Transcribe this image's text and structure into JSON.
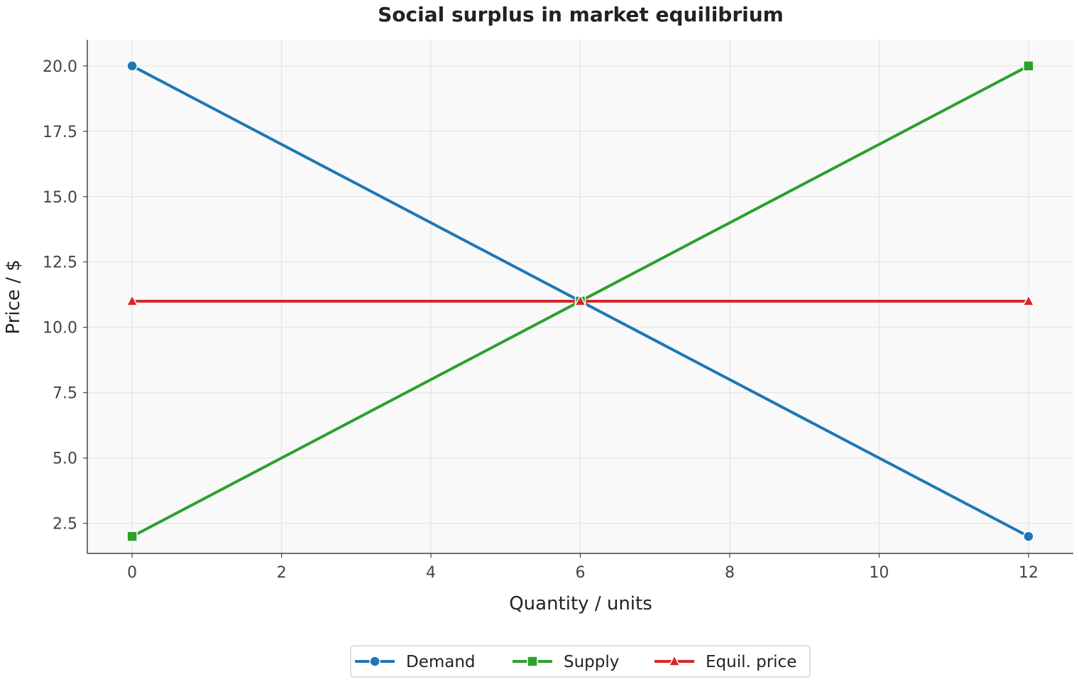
{
  "chart_data": {
    "type": "line",
    "title": "Social surplus in market equilibrium",
    "xlabel": "Quantity / units",
    "ylabel": "Price / $",
    "xlim": [
      -0.6,
      12.6
    ],
    "ylim": [
      1.35,
      21.0
    ],
    "xticks": [
      0,
      2,
      4,
      6,
      8,
      10,
      12
    ],
    "yticks": [
      2.5,
      5.0,
      7.5,
      10.0,
      12.5,
      15.0,
      17.5,
      20.0
    ],
    "xtick_labels": [
      "0",
      "2",
      "4",
      "6",
      "8",
      "10",
      "12"
    ],
    "ytick_labels": [
      "2.5",
      "5.0",
      "7.5",
      "10.0",
      "12.5",
      "15.0",
      "17.5",
      "20.0"
    ],
    "grid": true,
    "legend_position": "bottom-center",
    "series": [
      {
        "name": "Demand",
        "color": "#1f77b4",
        "marker": "circle",
        "x": [
          0,
          6,
          12
        ],
        "y": [
          20,
          11,
          2
        ]
      },
      {
        "name": "Supply",
        "color": "#2ca02c",
        "marker": "square",
        "x": [
          0,
          6,
          12
        ],
        "y": [
          2,
          11,
          20
        ]
      },
      {
        "name": "Equil. price",
        "color": "#d62728",
        "marker": "triangle",
        "x": [
          0,
          6,
          12
        ],
        "y": [
          11,
          11,
          11
        ]
      }
    ]
  }
}
